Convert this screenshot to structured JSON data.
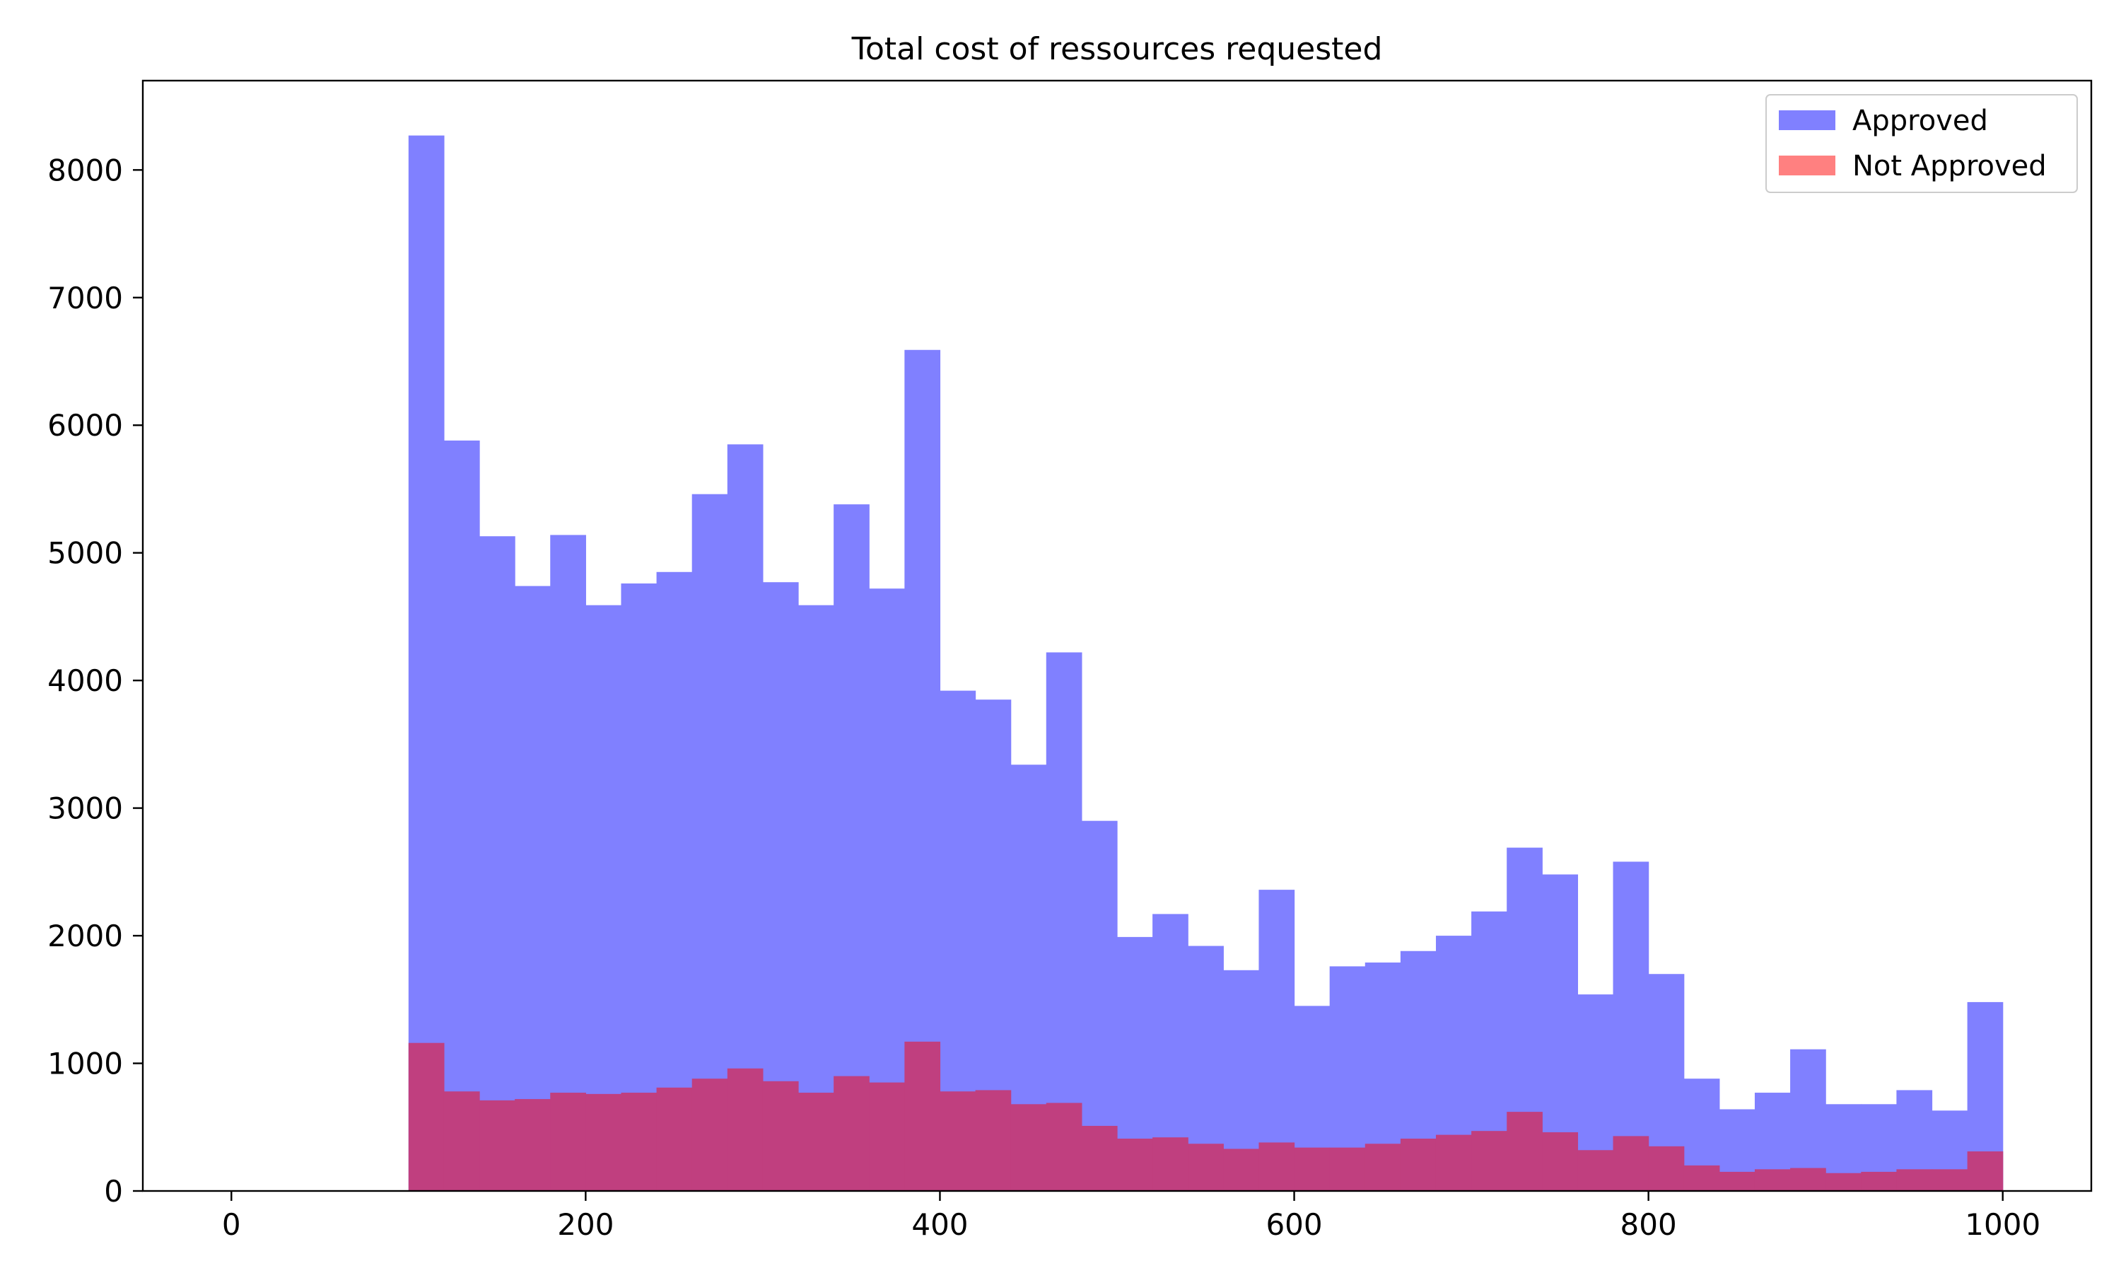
{
  "chart_data": {
    "type": "bar",
    "title": "Total cost of ressources requested",
    "xlabel": "",
    "ylabel": "",
    "xlim": [
      -50,
      1050
    ],
    "ylim": [
      0,
      8700
    ],
    "x_ticks": [
      0,
      200,
      400,
      600,
      800,
      1000
    ],
    "y_ticks": [
      0,
      1000,
      2000,
      3000,
      4000,
      5000,
      6000,
      7000,
      8000
    ],
    "grid": false,
    "legend_position": "top-right",
    "bin_edges": [
      100,
      120,
      140,
      160,
      180,
      200,
      220,
      240,
      260,
      280,
      300,
      320,
      340,
      360,
      380,
      400,
      420,
      440,
      460,
      480,
      500,
      520,
      540,
      560,
      580,
      600,
      620,
      640,
      660,
      680,
      700,
      720,
      740,
      760,
      780,
      800,
      820,
      840,
      860,
      880,
      900,
      920,
      940,
      960,
      980,
      1000
    ],
    "series": [
      {
        "name": "Approved",
        "color": "#8080ff",
        "values": [
          8270,
          5880,
          5130,
          4740,
          5140,
          4590,
          4760,
          4850,
          5460,
          5850,
          4770,
          4590,
          5380,
          4720,
          6590,
          3920,
          3850,
          3340,
          4220,
          2900,
          1990,
          2170,
          1920,
          1730,
          2360,
          1450,
          1760,
          1790,
          1880,
          2000,
          2190,
          2690,
          2480,
          1540,
          2580,
          1700,
          880,
          640,
          770,
          1110,
          680,
          680,
          790,
          630,
          1480
        ]
      },
      {
        "name": "Not Approved",
        "color": "#ff8080",
        "values": [
          1160,
          780,
          710,
          720,
          770,
          760,
          770,
          810,
          880,
          960,
          860,
          770,
          900,
          850,
          1170,
          780,
          790,
          680,
          690,
          510,
          410,
          420,
          370,
          330,
          380,
          340,
          340,
          370,
          410,
          440,
          470,
          620,
          460,
          320,
          430,
          350,
          200,
          150,
          170,
          180,
          140,
          150,
          170,
          170,
          310
        ]
      }
    ],
    "overlap_color": "#c03f7f"
  }
}
